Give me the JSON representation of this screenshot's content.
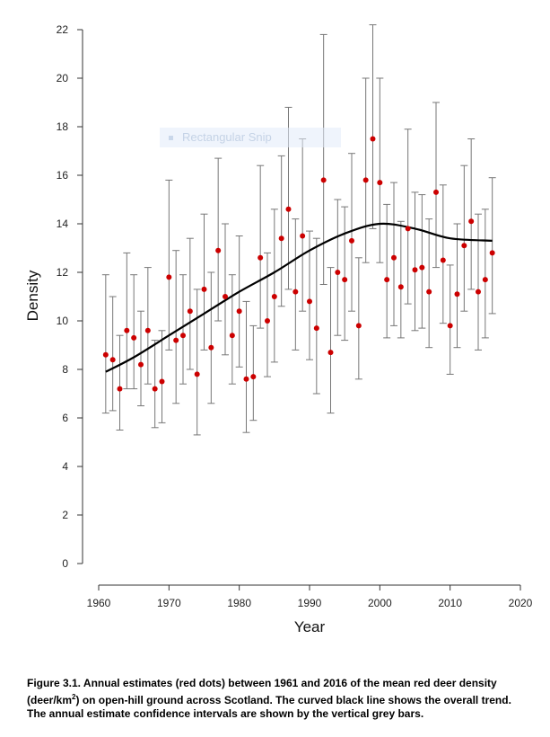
{
  "watermark_text": "Rectangular Snip",
  "caption": {
    "part1": "Figure 3.1. Annual estimates (red dots) between 1961 and 2016 of the mean red deer density (deer/km",
    "sup": "2",
    "part2": ") on open-hill ground across Scotland.  The curved black line shows the overall trend.  The annual estimate confidence intervals are shown by the vertical grey bars."
  },
  "colors": {
    "point": "#cc0000",
    "errorbar": "#777777",
    "trend": "#000000",
    "axis": "#333333"
  },
  "chart_data": {
    "type": "scatter",
    "title": "",
    "xlabel": "Year",
    "ylabel": "Density",
    "xlim": [
      1960,
      2020
    ],
    "ylim": [
      0,
      22
    ],
    "xticks": [
      1960,
      1970,
      1980,
      1990,
      2000,
      2010,
      2020
    ],
    "yticks": [
      0,
      2,
      4,
      6,
      8,
      10,
      12,
      14,
      16,
      18,
      20,
      22
    ],
    "grid": false,
    "series": [
      {
        "role": "annual estimates with confidence intervals",
        "points": [
          {
            "x": 1961,
            "y": 8.6,
            "lo": 6.2,
            "hi": 11.9
          },
          {
            "x": 1962,
            "y": 8.4,
            "lo": 6.3,
            "hi": 11.0
          },
          {
            "x": 1963,
            "y": 7.2,
            "lo": 5.5,
            "hi": 9.4
          },
          {
            "x": 1964,
            "y": 9.6,
            "lo": 7.2,
            "hi": 12.8
          },
          {
            "x": 1965,
            "y": 9.3,
            "lo": 7.2,
            "hi": 11.9
          },
          {
            "x": 1966,
            "y": 8.2,
            "lo": 6.5,
            "hi": 10.4
          },
          {
            "x": 1967,
            "y": 9.6,
            "lo": 7.4,
            "hi": 12.2
          },
          {
            "x": 1968,
            "y": 7.2,
            "lo": 5.6,
            "hi": 9.2
          },
          {
            "x": 1969,
            "y": 7.5,
            "lo": 5.8,
            "hi": 9.6
          },
          {
            "x": 1970,
            "y": 11.8,
            "lo": 8.8,
            "hi": 15.8
          },
          {
            "x": 1971,
            "y": 9.2,
            "lo": 6.6,
            "hi": 12.9
          },
          {
            "x": 1972,
            "y": 9.4,
            "lo": 7.4,
            "hi": 11.9
          },
          {
            "x": 1973,
            "y": 10.4,
            "lo": 8.0,
            "hi": 13.4
          },
          {
            "x": 1974,
            "y": 7.8,
            "lo": 5.3,
            "hi": 11.3
          },
          {
            "x": 1975,
            "y": 11.3,
            "lo": 8.8,
            "hi": 14.4
          },
          {
            "x": 1976,
            "y": 8.9,
            "lo": 6.6,
            "hi": 12.0
          },
          {
            "x": 1977,
            "y": 12.9,
            "lo": 10.0,
            "hi": 16.7
          },
          {
            "x": 1978,
            "y": 11.0,
            "lo": 8.6,
            "hi": 14.0
          },
          {
            "x": 1979,
            "y": 9.4,
            "lo": 7.4,
            "hi": 11.9
          },
          {
            "x": 1980,
            "y": 10.4,
            "lo": 8.1,
            "hi": 13.5
          },
          {
            "x": 1981,
            "y": 7.6,
            "lo": 5.4,
            "hi": 10.8
          },
          {
            "x": 1982,
            "y": 7.7,
            "lo": 5.9,
            "hi": 9.8
          },
          {
            "x": 1983,
            "y": 12.6,
            "lo": 9.7,
            "hi": 16.4
          },
          {
            "x": 1984,
            "y": 10.0,
            "lo": 7.7,
            "hi": 12.8
          },
          {
            "x": 1985,
            "y": 11.0,
            "lo": 8.3,
            "hi": 14.6
          },
          {
            "x": 1986,
            "y": 13.4,
            "lo": 10.6,
            "hi": 16.8
          },
          {
            "x": 1987,
            "y": 14.6,
            "lo": 11.3,
            "hi": 18.8
          },
          {
            "x": 1988,
            "y": 11.2,
            "lo": 8.8,
            "hi": 14.2
          },
          {
            "x": 1989,
            "y": 13.5,
            "lo": 10.4,
            "hi": 17.5
          },
          {
            "x": 1990,
            "y": 10.8,
            "lo": 8.4,
            "hi": 13.7
          },
          {
            "x": 1991,
            "y": 9.7,
            "lo": 7.0,
            "hi": 13.4
          },
          {
            "x": 1992,
            "y": 15.8,
            "lo": 11.5,
            "hi": 21.8
          },
          {
            "x": 1993,
            "y": 8.7,
            "lo": 6.2,
            "hi": 12.2
          },
          {
            "x": 1994,
            "y": 12.0,
            "lo": 9.4,
            "hi": 15.0
          },
          {
            "x": 1995,
            "y": 11.7,
            "lo": 9.2,
            "hi": 14.7
          },
          {
            "x": 1996,
            "y": 13.3,
            "lo": 10.4,
            "hi": 16.9
          },
          {
            "x": 1997,
            "y": 9.8,
            "lo": 7.6,
            "hi": 12.6
          },
          {
            "x": 1998,
            "y": 15.8,
            "lo": 12.4,
            "hi": 20.0
          },
          {
            "x": 1999,
            "y": 17.5,
            "lo": 13.8,
            "hi": 22.2
          },
          {
            "x": 2000,
            "y": 15.7,
            "lo": 12.4,
            "hi": 20.0
          },
          {
            "x": 2001,
            "y": 11.7,
            "lo": 9.3,
            "hi": 14.8
          },
          {
            "x": 2002,
            "y": 12.6,
            "lo": 9.8,
            "hi": 15.7
          },
          {
            "x": 2003,
            "y": 11.4,
            "lo": 9.3,
            "hi": 14.1
          },
          {
            "x": 2004,
            "y": 13.8,
            "lo": 10.7,
            "hi": 17.9
          },
          {
            "x": 2005,
            "y": 12.1,
            "lo": 9.6,
            "hi": 15.3
          },
          {
            "x": 2006,
            "y": 12.2,
            "lo": 9.7,
            "hi": 15.2
          },
          {
            "x": 2007,
            "y": 11.2,
            "lo": 8.9,
            "hi": 14.2
          },
          {
            "x": 2008,
            "y": 15.3,
            "lo": 12.2,
            "hi": 19.0
          },
          {
            "x": 2009,
            "y": 12.5,
            "lo": 9.9,
            "hi": 15.6
          },
          {
            "x": 2010,
            "y": 9.8,
            "lo": 7.8,
            "hi": 12.3
          },
          {
            "x": 2011,
            "y": 11.1,
            "lo": 8.9,
            "hi": 14.0
          },
          {
            "x": 2012,
            "y": 13.1,
            "lo": 10.4,
            "hi": 16.4
          },
          {
            "x": 2013,
            "y": 14.1,
            "lo": 11.3,
            "hi": 17.5
          },
          {
            "x": 2014,
            "y": 11.2,
            "lo": 8.8,
            "hi": 14.4
          },
          {
            "x": 2015,
            "y": 11.7,
            "lo": 9.3,
            "hi": 14.6
          },
          {
            "x": 2016,
            "y": 12.8,
            "lo": 10.3,
            "hi": 15.9
          }
        ]
      }
    ],
    "trend_line": {
      "x": [
        1961,
        1965,
        1970,
        1975,
        1980,
        1985,
        1990,
        1995,
        2000,
        2005,
        2010,
        2016
      ],
      "y": [
        7.9,
        8.5,
        9.4,
        10.3,
        11.2,
        12.0,
        12.9,
        13.6,
        14.0,
        13.8,
        13.4,
        13.3
      ]
    }
  }
}
